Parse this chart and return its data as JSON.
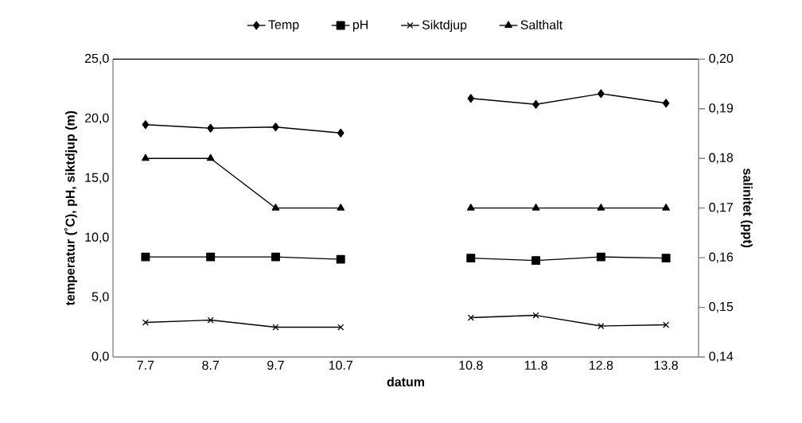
{
  "chart_data": {
    "type": "line",
    "xlabel": "datum",
    "ylabel": "temperatur (˚C),  pH, siktdjup (m)",
    "y2label": "salinitet (ppt)",
    "categories": [
      "7.7",
      "8.7",
      "9.7",
      "10.7",
      null,
      "10.8",
      "11.8",
      "12.8",
      "13.8"
    ],
    "series": [
      {
        "name": "Temp",
        "color": "#000000",
        "marker": "diamond",
        "values": [
          19.5,
          19.2,
          19.3,
          18.8,
          null,
          21.7,
          21.2,
          22.1,
          21.3
        ]
      },
      {
        "name": "pH",
        "color": "#000000",
        "marker": "square",
        "values": [
          8.4,
          8.4,
          8.4,
          8.2,
          null,
          8.3,
          8.1,
          8.4,
          8.3
        ]
      },
      {
        "name": "Siktdjup",
        "color": "#000000",
        "marker": "cross",
        "values": [
          2.9,
          3.1,
          2.5,
          2.5,
          null,
          3.3,
          3.5,
          2.6,
          2.7
        ]
      },
      {
        "name": "Salthalt",
        "color": "#000000",
        "marker": "triangle",
        "axis": "y2",
        "values": [
          0.18,
          0.18,
          0.17,
          0.17,
          null,
          0.17,
          0.17,
          0.17,
          0.17
        ]
      }
    ],
    "ylim": [
      0,
      25
    ],
    "yticks": [
      {
        "value": 0,
        "label": "0,0"
      },
      {
        "value": 5,
        "label": "5,0"
      },
      {
        "value": 10,
        "label": "10,0"
      },
      {
        "value": 15,
        "label": "15,0"
      },
      {
        "value": 20,
        "label": "20,0"
      },
      {
        "value": 25,
        "label": "25,0"
      }
    ],
    "y2lim": [
      0.14,
      0.2
    ],
    "y2ticks": [
      {
        "value": 0.14,
        "label": "0,14"
      },
      {
        "value": 0.15,
        "label": "0,15"
      },
      {
        "value": 0.16,
        "label": "0,16"
      },
      {
        "value": 0.17,
        "label": "0,17"
      },
      {
        "value": 0.18,
        "label": "0,18"
      },
      {
        "value": 0.19,
        "label": "0,19"
      },
      {
        "value": 0.2,
        "label": "0,20"
      }
    ],
    "legend": "top",
    "grid": false,
    "line_style": "solid"
  }
}
